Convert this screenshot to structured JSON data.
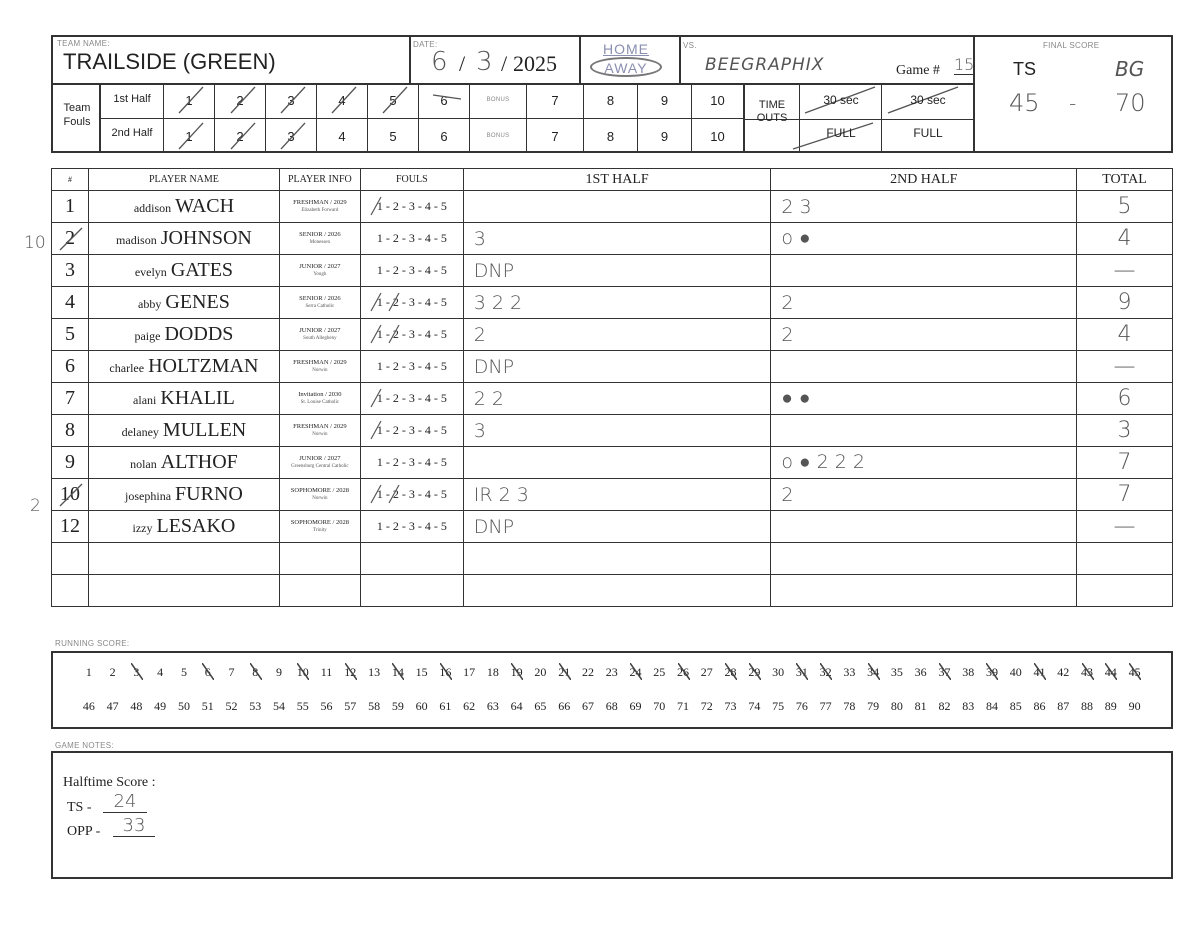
{
  "header": {
    "team_name_label": "TEAM NAME:",
    "team_name": "TRAILSIDE (GREEN)",
    "date_label": "DATE:",
    "date_month": "6",
    "date_day": "3",
    "date_year": "2025",
    "slash": "/",
    "home": "HOME",
    "away": "AWAY",
    "vs_label": "VS.",
    "opponent": "BEEGRAPHIX",
    "game_label": "Game #",
    "game_number": "15",
    "final_score_label": "FINAL SCORE",
    "final_ts_label": "TS",
    "final_opp_label": "BG",
    "final_ts": "45",
    "final_dash": "-",
    "final_opp": "70"
  },
  "team_fouls": {
    "label": "Team Fouls",
    "first_half_label": "1st Half",
    "second_half_label": "2nd Half",
    "bonus_label": "BONUS",
    "first_half": [
      "1",
      "2",
      "3",
      "4",
      "5",
      "6",
      "7",
      "8",
      "9",
      "10"
    ],
    "second_half": [
      "1",
      "2",
      "3",
      "4",
      "5",
      "6",
      "7",
      "8",
      "9",
      "10"
    ],
    "timeouts_label": "TIME OUTS",
    "to_30": "30 sec",
    "to_full": "FULL"
  },
  "roster": {
    "headers": {
      "num": "#",
      "name": "PLAYER NAME",
      "info": "PLAYER INFO",
      "fouls": "FOULS",
      "first": "1ST HALF",
      "second": "2ND HALF",
      "total": "TOTAL"
    },
    "fouls_template": "1 - 2 - 3 - 4 - 5",
    "players": [
      {
        "num": "1",
        "first": "addison",
        "last": "WACH",
        "class": "FRESHMAN / 2029",
        "school": "Elizabeth Forward",
        "h1": "",
        "h2": "2 3",
        "total": "5",
        "margin": ""
      },
      {
        "num": "2",
        "first": "madison",
        "last": "JOHNSON",
        "class": "SENIOR / 2026",
        "school": "Monessen",
        "h1": "3",
        "h2": "o ●",
        "total": "4",
        "margin": "10"
      },
      {
        "num": "3",
        "first": "evelyn",
        "last": "GATES",
        "class": "JUNIOR / 2027",
        "school": "Yough",
        "h1": "DNP",
        "h2": "",
        "total": "—",
        "margin": ""
      },
      {
        "num": "4",
        "first": "abby",
        "last": "GENES",
        "class": "SENIOR / 2026",
        "school": "Serra Catholic",
        "h1": "3 2 2",
        "h2": "2",
        "total": "9",
        "margin": ""
      },
      {
        "num": "5",
        "first": "paige",
        "last": "DODDS",
        "class": "JUNIOR / 2027",
        "school": "South Allegheny",
        "h1": "2",
        "h2": "2",
        "total": "4",
        "margin": ""
      },
      {
        "num": "6",
        "first": "charlee",
        "last": "HOLTZMAN",
        "class": "FRESHMAN / 2029",
        "school": "Norwin",
        "h1": "DNP",
        "h2": "",
        "total": "—",
        "margin": ""
      },
      {
        "num": "7",
        "first": "alani",
        "last": "KHALIL",
        "class": "Invitation / 2030",
        "school": "St. Louise Catholic",
        "h1": "2 2",
        "h2": "● ●",
        "total": "6",
        "margin": ""
      },
      {
        "num": "8",
        "first": "delaney",
        "last": "MULLEN",
        "class": "FRESHMAN / 2029",
        "school": "Norwin",
        "h1": "3",
        "h2": "",
        "total": "3",
        "margin": ""
      },
      {
        "num": "9",
        "first": "nolan",
        "last": "ALTHOF",
        "class": "JUNIOR / 2027",
        "school": "Greensburg Central Catholic",
        "h1": "",
        "h2": "o ● 2 2 2",
        "total": "7",
        "margin": ""
      },
      {
        "num": "10",
        "first": "josephina",
        "last": "FURNO",
        "class": "SOPHOMORE / 2028",
        "school": "Norwin",
        "h1": "IR  2 3",
        "h2": "2",
        "total": "7",
        "margin": "2"
      },
      {
        "num": "12",
        "first": "izzy",
        "last": "LESAKO",
        "class": "SOPHOMORE / 2028",
        "school": "Trinity",
        "h1": "DNP",
        "h2": "",
        "total": "—",
        "margin": ""
      }
    ]
  },
  "running_score": {
    "label": "RUNNING SCORE:",
    "row1": [
      "1",
      "2",
      "3",
      "4",
      "5",
      "6",
      "7",
      "8",
      "9",
      "10",
      "11",
      "12",
      "13",
      "14",
      "15",
      "16",
      "17",
      "18",
      "19",
      "20",
      "21",
      "22",
      "23",
      "24",
      "25",
      "26",
      "27",
      "28",
      "29",
      "30",
      "31",
      "32",
      "33",
      "34",
      "35",
      "36",
      "37",
      "38",
      "39",
      "40",
      "41",
      "42",
      "43",
      "44",
      "45"
    ],
    "row2": [
      "46",
      "47",
      "48",
      "49",
      "50",
      "51",
      "52",
      "53",
      "54",
      "55",
      "56",
      "57",
      "58",
      "59",
      "60",
      "61",
      "62",
      "63",
      "64",
      "65",
      "66",
      "67",
      "68",
      "69",
      "70",
      "71",
      "72",
      "73",
      "74",
      "75",
      "76",
      "77",
      "78",
      "79",
      "80",
      "81",
      "82",
      "83",
      "84",
      "85",
      "86",
      "87",
      "88",
      "89",
      "90"
    ],
    "crossed": [
      "3",
      "6",
      "8",
      "10",
      "12",
      "14",
      "16",
      "19",
      "21",
      "24",
      "26",
      "28",
      "29",
      "31",
      "32",
      "34",
      "37",
      "39",
      "41",
      "43",
      "44",
      "45"
    ]
  },
  "notes": {
    "label": "GAME NOTES:",
    "halftime_label": "Halftime Score :",
    "ts_label": "TS -",
    "ts_score": "24",
    "opp_label": "OPP -",
    "opp_score": "33"
  },
  "colors": {
    "ink": "#333333",
    "pencil": "#555555",
    "label_gray": "#888888"
  }
}
